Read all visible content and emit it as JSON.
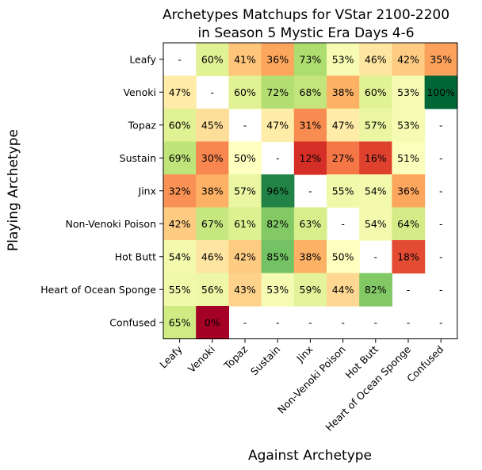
{
  "chart_data": {
    "type": "heatmap",
    "title_line1": "Archetypes Matchups for VStar 2100-2200",
    "title_line2": "in Season 5 Mystic Era Days 4-6",
    "xlabel": "Against Archetype",
    "ylabel": "Playing Archetype",
    "rows": [
      "Leafy",
      "Venoki",
      "Topaz",
      "Sustain",
      "Jinx",
      "Non-Venoki Poison",
      "Hot Butt",
      "Heart of Ocean Sponge",
      "Confused"
    ],
    "columns": [
      "Leafy",
      "Venoki",
      "Topaz",
      "Sustain",
      "Jinx",
      "Non-Venoki Poison",
      "Hot Butt",
      "Heart of Ocean Sponge",
      "Confused"
    ],
    "values": [
      [
        null,
        60,
        41,
        36,
        73,
        53,
        46,
        42,
        35
      ],
      [
        47,
        null,
        60,
        72,
        68,
        38,
        60,
        53,
        100
      ],
      [
        60,
        45,
        null,
        47,
        31,
        47,
        57,
        53,
        null
      ],
      [
        69,
        30,
        50,
        null,
        12,
        27,
        16,
        51,
        null
      ],
      [
        32,
        38,
        57,
        96,
        null,
        55,
        54,
        36,
        null
      ],
      [
        42,
        67,
        61,
        82,
        63,
        null,
        54,
        64,
        null
      ],
      [
        54,
        46,
        42,
        85,
        38,
        50,
        null,
        18,
        null
      ],
      [
        55,
        56,
        43,
        53,
        59,
        44,
        82,
        null,
        null
      ],
      [
        65,
        0,
        null,
        null,
        null,
        null,
        null,
        null,
        null
      ]
    ],
    "labels": [
      [
        "-",
        "60%",
        "41%",
        "36%",
        "73%",
        "53%",
        "46%",
        "42%",
        "35%"
      ],
      [
        "47%",
        "-",
        "60%",
        "72%",
        "68%",
        "38%",
        "60%",
        "53%",
        "100%"
      ],
      [
        "60%",
        "45%",
        "-",
        "47%",
        "31%",
        "47%",
        "57%",
        "53%",
        "-"
      ],
      [
        "69%",
        "30%",
        "50%",
        "-",
        "12%",
        "27%",
        "16%",
        "51%",
        "-"
      ],
      [
        "32%",
        "38%",
        "57%",
        "96%",
        "-",
        "55%",
        "54%",
        "36%",
        "-"
      ],
      [
        "42%",
        "67%",
        "61%",
        "82%",
        "63%",
        "-",
        "54%",
        "64%",
        "-"
      ],
      [
        "54%",
        "46%",
        "42%",
        "85%",
        "38%",
        "50%",
        "-",
        "18%",
        "-"
      ],
      [
        "55%",
        "56%",
        "43%",
        "53%",
        "59%",
        "44%",
        "82%",
        "-",
        "-"
      ],
      [
        "65%",
        "0%",
        "-",
        "-",
        "-",
        "-",
        "-",
        "-",
        "-"
      ]
    ],
    "colormap": "RdYlGn",
    "vmin": 0,
    "vmax": 100,
    "grid": false
  }
}
